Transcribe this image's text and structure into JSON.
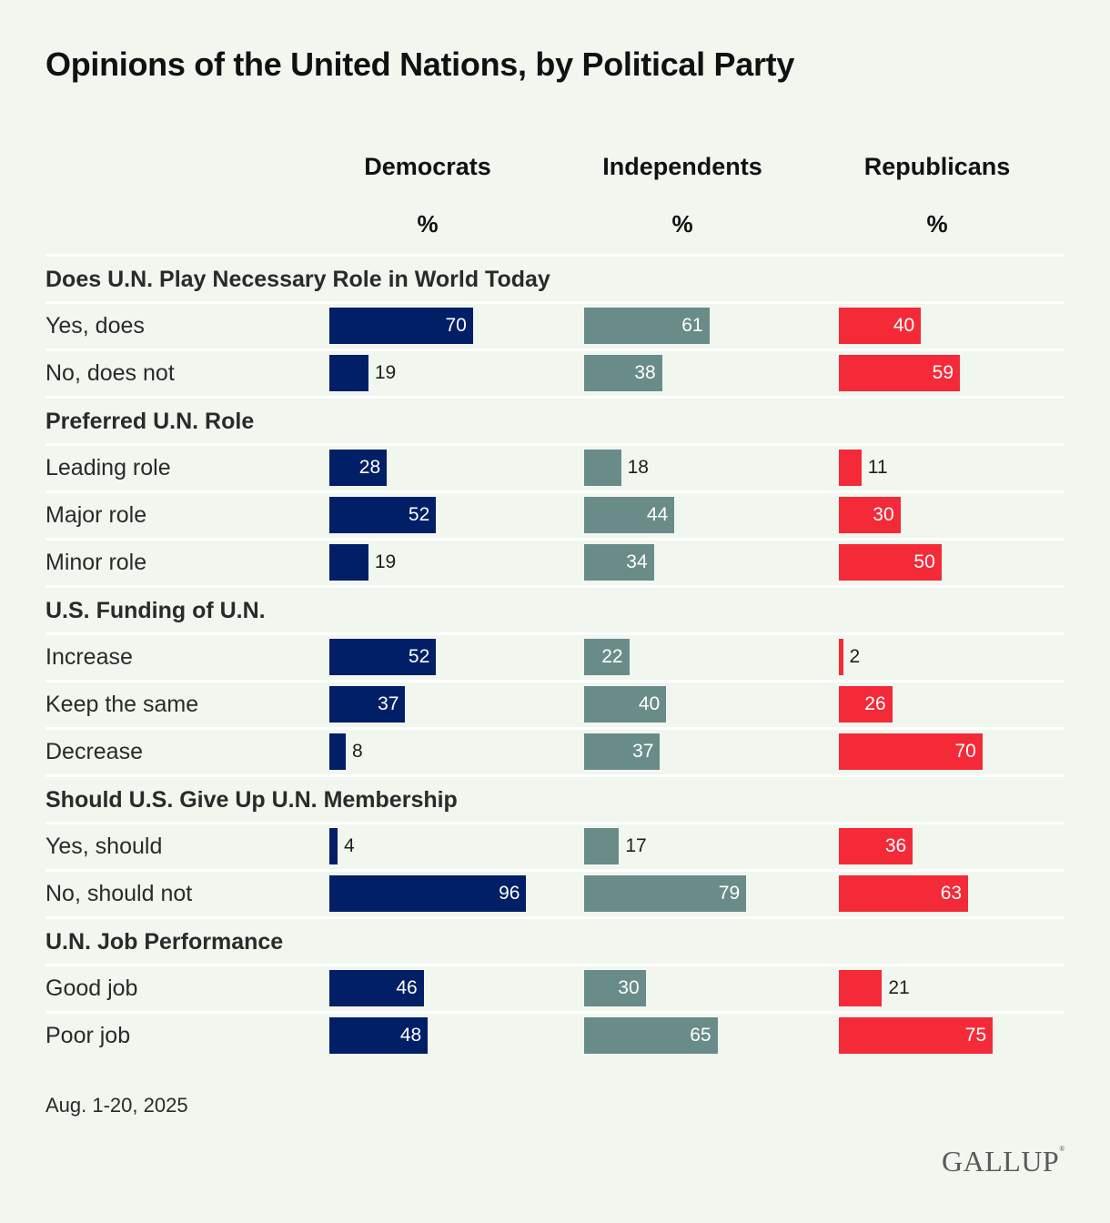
{
  "chart_data": {
    "type": "bar",
    "title": "Opinions of the United Nations, by Political Party",
    "unit_label": "%",
    "series": [
      {
        "name": "Democrats",
        "color": "#001f66"
      },
      {
        "name": "Independents",
        "color": "#6a8c89"
      },
      {
        "name": "Republicans",
        "color": "#f42a38"
      }
    ],
    "sections": [
      {
        "title": "Does U.N. Play Necessary Role in World Today",
        "rows": [
          {
            "label": "Yes, does",
            "values": [
              70,
              61,
              40
            ]
          },
          {
            "label": "No, does not",
            "values": [
              19,
              38,
              59
            ]
          }
        ]
      },
      {
        "title": "Preferred U.N. Role",
        "rows": [
          {
            "label": "Leading role",
            "values": [
              28,
              18,
              11
            ]
          },
          {
            "label": "Major role",
            "values": [
              52,
              44,
              30
            ]
          },
          {
            "label": "Minor role",
            "values": [
              19,
              34,
              50
            ]
          }
        ]
      },
      {
        "title": "U.S. Funding of U.N.",
        "rows": [
          {
            "label": "Increase",
            "values": [
              52,
              22,
              2
            ]
          },
          {
            "label": "Keep the same",
            "values": [
              37,
              40,
              26
            ]
          },
          {
            "label": "Decrease",
            "values": [
              8,
              37,
              70
            ]
          }
        ]
      },
      {
        "title": "Should U.S. Give Up U.N. Membership",
        "rows": [
          {
            "label": "Yes, should",
            "values": [
              4,
              17,
              36
            ]
          },
          {
            "label": "No, should not",
            "values": [
              96,
              79,
              63
            ]
          }
        ]
      },
      {
        "title": "U.N. Job Performance",
        "rows": [
          {
            "label": "Good job",
            "values": [
              46,
              30,
              21
            ]
          },
          {
            "label": "Poor job",
            "values": [
              48,
              65,
              75
            ]
          }
        ]
      }
    ],
    "xlim": [
      0,
      100
    ]
  },
  "footer": {
    "date": "Aug. 1-20, 2025",
    "logo": "GALLUP"
  }
}
